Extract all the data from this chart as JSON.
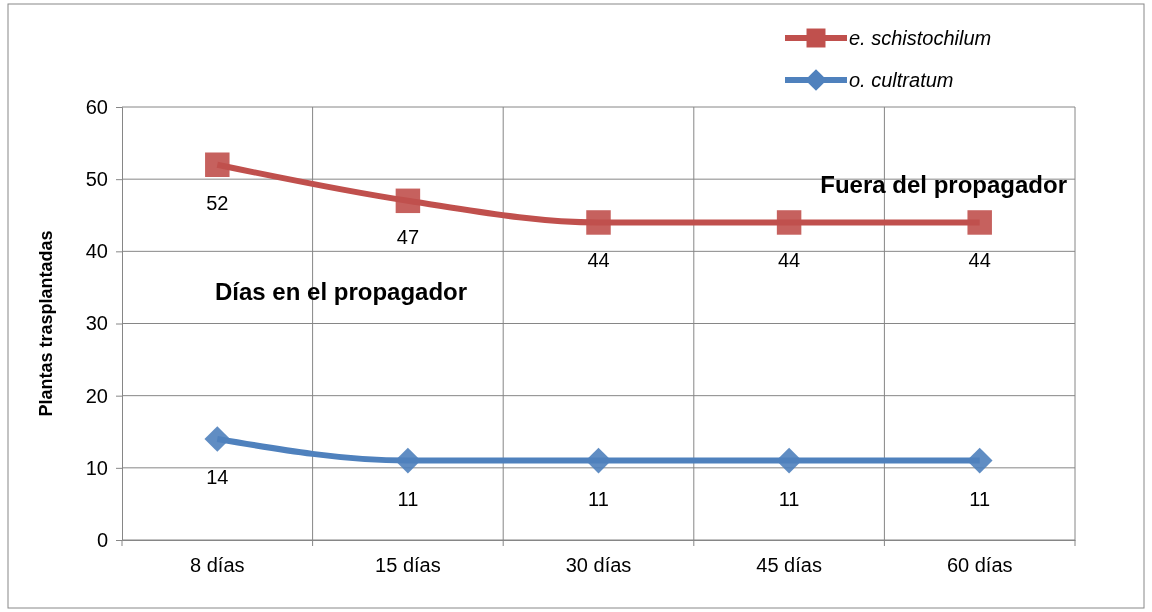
{
  "chart_data": {
    "type": "line",
    "categories": [
      "8 días",
      "15 días",
      "30 días",
      "45 días",
      "60 días"
    ],
    "series": [
      {
        "name": "e. schistochilum",
        "color": "#c0504d",
        "marker": "square",
        "values": [
          52,
          47,
          44,
          44,
          44
        ]
      },
      {
        "name": "o. cultratum",
        "color": "#4f81bd",
        "marker": "diamond",
        "values": [
          14,
          11,
          11,
          11,
          11
        ]
      }
    ],
    "ylabel": "Plantas trasplantadas",
    "ylim": [
      0,
      60
    ],
    "yticks": [
      0,
      10,
      20,
      30,
      40,
      50,
      60
    ],
    "grid": true,
    "legend": "top right",
    "data_labels": true,
    "annotations": [
      "Días en el propagador",
      "Fuera del propagador"
    ]
  }
}
